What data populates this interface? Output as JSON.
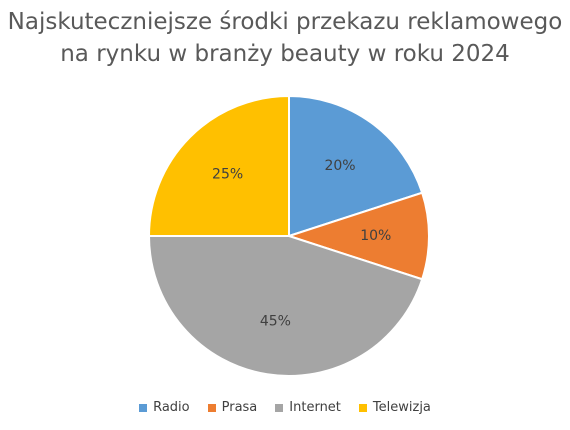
{
  "chart_data": {
    "type": "pie",
    "title_lines": [
      "Najskuteczniejsze środki przekazu reklamowego",
      "na rynku w branży beauty w roku 2024"
    ],
    "categories": [
      "Radio",
      "Prasa",
      "Internet",
      "Telewizja"
    ],
    "values": [
      20,
      10,
      45,
      25
    ],
    "labels": [
      "20%",
      "10%",
      "45%",
      "25%"
    ],
    "colors": [
      "#5B9BD5",
      "#ED7D31",
      "#A5A5A5",
      "#FFC000"
    ],
    "legend_position": "bottom"
  }
}
